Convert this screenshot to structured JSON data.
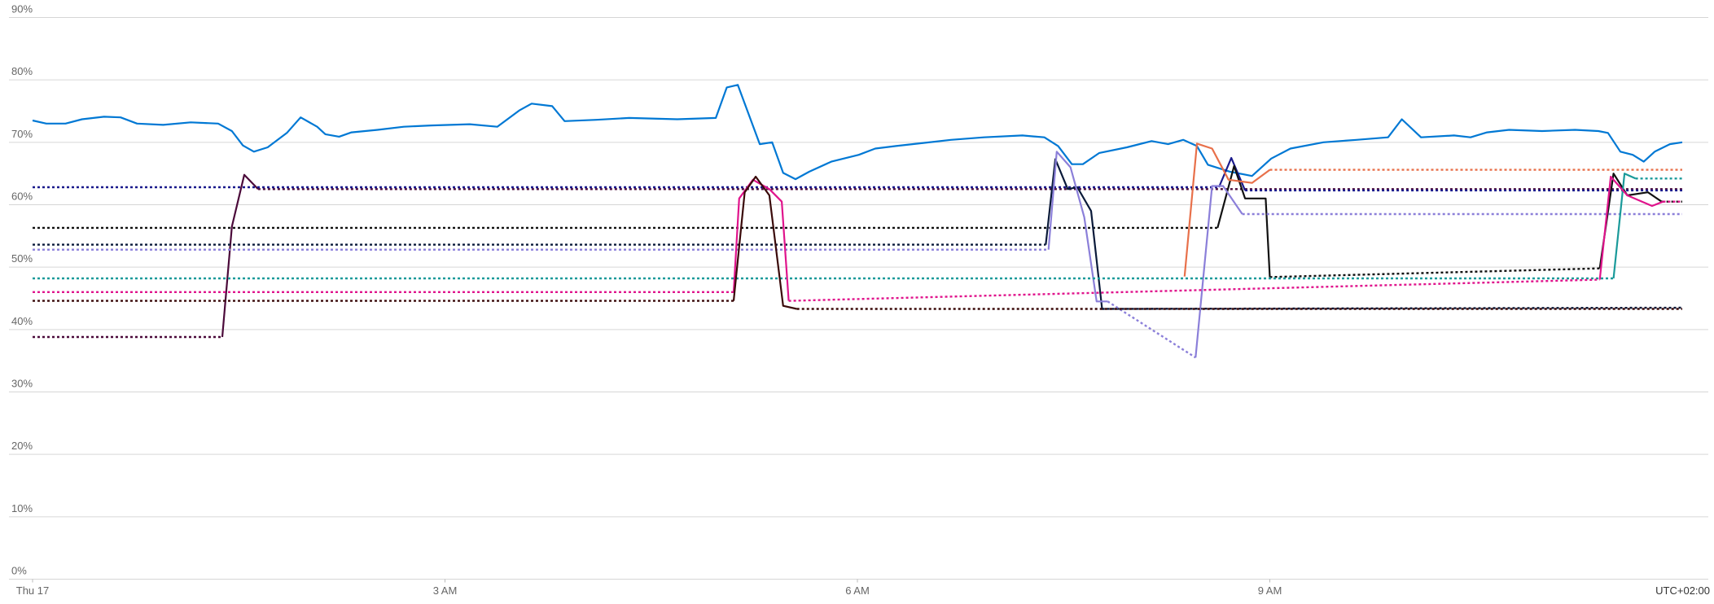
{
  "chart_data": {
    "type": "line",
    "xlim": [
      0,
      12
    ],
    "ylim": [
      0,
      90
    ],
    "xticks": [
      {
        "value": 0,
        "label": "Thu 17"
      },
      {
        "value": 3,
        "label": "3 AM"
      },
      {
        "value": 6,
        "label": "6 AM"
      },
      {
        "value": 9,
        "label": "9 AM"
      }
    ],
    "yticks": [
      {
        "value": 0,
        "label": "0%"
      },
      {
        "value": 10,
        "label": "10%"
      },
      {
        "value": 20,
        "label": "20%"
      },
      {
        "value": 30,
        "label": "30%"
      },
      {
        "value": 40,
        "label": "40%"
      },
      {
        "value": 50,
        "label": "50%"
      },
      {
        "value": 60,
        "label": "60%"
      },
      {
        "value": 70,
        "label": "70%"
      },
      {
        "value": 80,
        "label": "80%"
      },
      {
        "value": 90,
        "label": "90%"
      }
    ],
    "timezone": "UTC+02:00",
    "grid": true,
    "series": [
      {
        "color": "#0078d4",
        "dashed": false,
        "x": [
          0,
          0.1,
          0.24,
          0.36,
          0.52,
          0.64,
          0.76,
          0.95,
          1.15,
          1.35,
          1.45,
          1.53,
          1.61,
          1.71,
          1.85,
          1.95,
          2.07,
          2.13,
          2.23,
          2.32,
          2.51,
          2.7,
          2.9,
          3.18,
          3.38,
          3.54,
          3.63,
          3.78,
          3.87,
          4.1,
          4.34,
          4.69,
          4.97,
          5.05,
          5.13,
          5.29,
          5.38,
          5.46,
          5.55,
          5.65,
          5.81,
          6.01,
          6.13,
          6.28,
          6.48,
          6.68,
          6.92,
          7.2,
          7.36,
          7.46,
          7.56,
          7.64,
          7.76,
          7.96,
          8.14,
          8.26,
          8.37,
          8.47,
          8.55,
          8.71,
          8.87,
          9.01,
          9.15,
          9.39,
          9.63,
          9.86,
          9.96,
          10.1,
          10.34,
          10.46,
          10.58,
          10.74,
          10.98,
          11.22,
          11.39,
          11.46,
          11.55,
          11.64,
          11.72,
          11.8,
          11.91,
          12
        ],
        "values": [
          73.5,
          73,
          73,
          73.7,
          74.1,
          74,
          73,
          72.8,
          73.2,
          73,
          71.8,
          69.5,
          68.5,
          69.2,
          71.5,
          74,
          72.5,
          71.3,
          70.9,
          71.6,
          72,
          72.5,
          72.7,
          72.9,
          72.5,
          75.1,
          76.2,
          75.8,
          73.4,
          73.6,
          73.9,
          73.7,
          73.9,
          78.8,
          79.2,
          69.7,
          70,
          65.1,
          64.1,
          65.3,
          66.9,
          68,
          69,
          69.4,
          69.9,
          70.4,
          70.8,
          71.1,
          70.8,
          69.4,
          66.5,
          66.5,
          68.3,
          69.2,
          70.2,
          69.7,
          70.4,
          69.4,
          66.4,
          65.3,
          64.6,
          67.4,
          69,
          70,
          70.4,
          70.8,
          73.7,
          70.8,
          71.1,
          70.8,
          71.6,
          72,
          71.8,
          72,
          71.8,
          71.5,
          68.5,
          68,
          66.9,
          68.5,
          69.7,
          70
        ]
      },
      {
        "color": "#4b0a3a",
        "dashed": true,
        "x": [
          0,
          1.38
        ],
        "values": [
          38.8,
          38.8
        ]
      },
      {
        "color": "#4b0a3a",
        "dashed": false,
        "x": [
          1.38,
          1.45,
          1.54,
          1.64
        ],
        "values": [
          38.8,
          56.5,
          64.8,
          62.5
        ]
      },
      {
        "color": "#4b0a3a",
        "dashed": true,
        "x": [
          1.64,
          12
        ],
        "values": [
          62.5,
          62.5
        ]
      },
      {
        "color": "#1a1a8c",
        "dashed": true,
        "x": [
          0,
          8.63
        ],
        "values": [
          62.8,
          62.8
        ]
      },
      {
        "color": "#1a1a8c",
        "dashed": false,
        "x": [
          8.63,
          8.72,
          8.82
        ],
        "values": [
          62.8,
          67.5,
          62.3
        ]
      },
      {
        "color": "#1a1a8c",
        "dashed": true,
        "x": [
          8.82,
          12
        ],
        "values": [
          62.3,
          62.3
        ]
      },
      {
        "color": "#111111",
        "dashed": true,
        "x": [
          0,
          8.62
        ],
        "values": [
          56.3,
          56.3
        ]
      },
      {
        "color": "#111111",
        "dashed": false,
        "x": [
          8.62,
          8.74,
          8.82,
          8.97,
          9
        ],
        "values": [
          56.3,
          66.2,
          61,
          61,
          48.4
        ]
      },
      {
        "color": "#111111",
        "dashed": true,
        "x": [
          9,
          11.4
        ],
        "values": [
          48.4,
          49.8
        ]
      },
      {
        "color": "#111111",
        "dashed": false,
        "x": [
          11.4,
          11.5,
          11.6,
          11.75,
          11.85
        ],
        "values": [
          49.8,
          65,
          61.5,
          62,
          60.5
        ]
      },
      {
        "color": "#111111",
        "dashed": true,
        "x": [
          11.85,
          12
        ],
        "values": [
          60.5,
          60.5
        ]
      },
      {
        "color": "#0a1a3a",
        "dashed": true,
        "x": [
          0,
          7.37
        ],
        "values": [
          53.6,
          53.6
        ]
      },
      {
        "color": "#0a1a3a",
        "dashed": false,
        "x": [
          7.37,
          7.44,
          7.53,
          7.6,
          7.7,
          7.78
        ],
        "values": [
          53.6,
          67.3,
          62.5,
          62.8,
          59,
          43.3
        ]
      },
      {
        "color": "#0a1a3a",
        "dashed": true,
        "x": [
          7.78,
          12
        ],
        "values": [
          43.3,
          43.5
        ]
      },
      {
        "color": "#8b7fd9",
        "dashed": true,
        "x": [
          0,
          7.39
        ],
        "values": [
          52.8,
          52.8
        ]
      },
      {
        "color": "#8b7fd9",
        "dashed": false,
        "x": [
          7.39,
          7.45,
          7.55,
          7.65,
          7.74,
          7.82
        ],
        "values": [
          52.8,
          68.5,
          66,
          58,
          44.5,
          44.5
        ]
      },
      {
        "color": "#8b7fd9",
        "dashed": true,
        "x": [
          7.82,
          8.46
        ],
        "values": [
          44.5,
          35.5
        ]
      },
      {
        "color": "#8b7fd9",
        "dashed": false,
        "x": [
          8.46,
          8.58,
          8.66,
          8.8
        ],
        "values": [
          35.5,
          63,
          63,
          58.5
        ]
      },
      {
        "color": "#8b7fd9",
        "dashed": true,
        "x": [
          8.8,
          12
        ],
        "values": [
          58.5,
          58.5
        ]
      },
      {
        "color": "#1a9a9a",
        "dashed": true,
        "x": [
          0,
          11.5
        ],
        "values": [
          48.2,
          48.2
        ]
      },
      {
        "color": "#1a9a9a",
        "dashed": false,
        "x": [
          11.5,
          11.58,
          11.66
        ],
        "values": [
          48.2,
          65,
          64.2
        ]
      },
      {
        "color": "#1a9a9a",
        "dashed": true,
        "x": [
          11.66,
          12
        ],
        "values": [
          64.2,
          64.2
        ]
      },
      {
        "color": "#e0148c",
        "dashed": true,
        "x": [
          0,
          5.1
        ],
        "values": [
          46,
          46
        ]
      },
      {
        "color": "#e0148c",
        "dashed": false,
        "x": [
          5.1,
          5.14,
          5.24,
          5.36,
          5.45,
          5.5
        ],
        "values": [
          46,
          61,
          64,
          62.5,
          60.5,
          44.6
        ]
      },
      {
        "color": "#e0148c",
        "dashed": true,
        "x": [
          5.5,
          11.4
        ],
        "values": [
          44.6,
          48
        ]
      },
      {
        "color": "#e0148c",
        "dashed": false,
        "x": [
          11.4,
          11.48,
          11.6,
          11.78,
          11.86
        ],
        "values": [
          48,
          64.5,
          61.5,
          59.8,
          60.5
        ]
      },
      {
        "color": "#e0148c",
        "dashed": true,
        "x": [
          11.86,
          12
        ],
        "values": [
          60.5,
          60.5
        ]
      },
      {
        "color": "#3a0a0a",
        "dashed": true,
        "x": [
          0,
          5.1
        ],
        "values": [
          44.6,
          44.6
        ]
      },
      {
        "color": "#3a0a0a",
        "dashed": false,
        "x": [
          5.1,
          5.18,
          5.26,
          5.36,
          5.46,
          5.56
        ],
        "values": [
          44.6,
          62,
          64.5,
          61.5,
          43.8,
          43.3
        ]
      },
      {
        "color": "#3a0a0a",
        "dashed": true,
        "x": [
          5.56,
          12
        ],
        "values": [
          43.3,
          43.3
        ]
      },
      {
        "color": "#e8704a",
        "dashed": false,
        "x": [
          8.38,
          8.47,
          8.58,
          8.7,
          8.87,
          9
        ],
        "values": [
          48.5,
          69.8,
          69,
          64,
          63.5,
          65.6
        ]
      },
      {
        "color": "#e8704a",
        "dashed": true,
        "x": [
          9,
          12
        ],
        "values": [
          65.6,
          65.6
        ]
      }
    ]
  }
}
